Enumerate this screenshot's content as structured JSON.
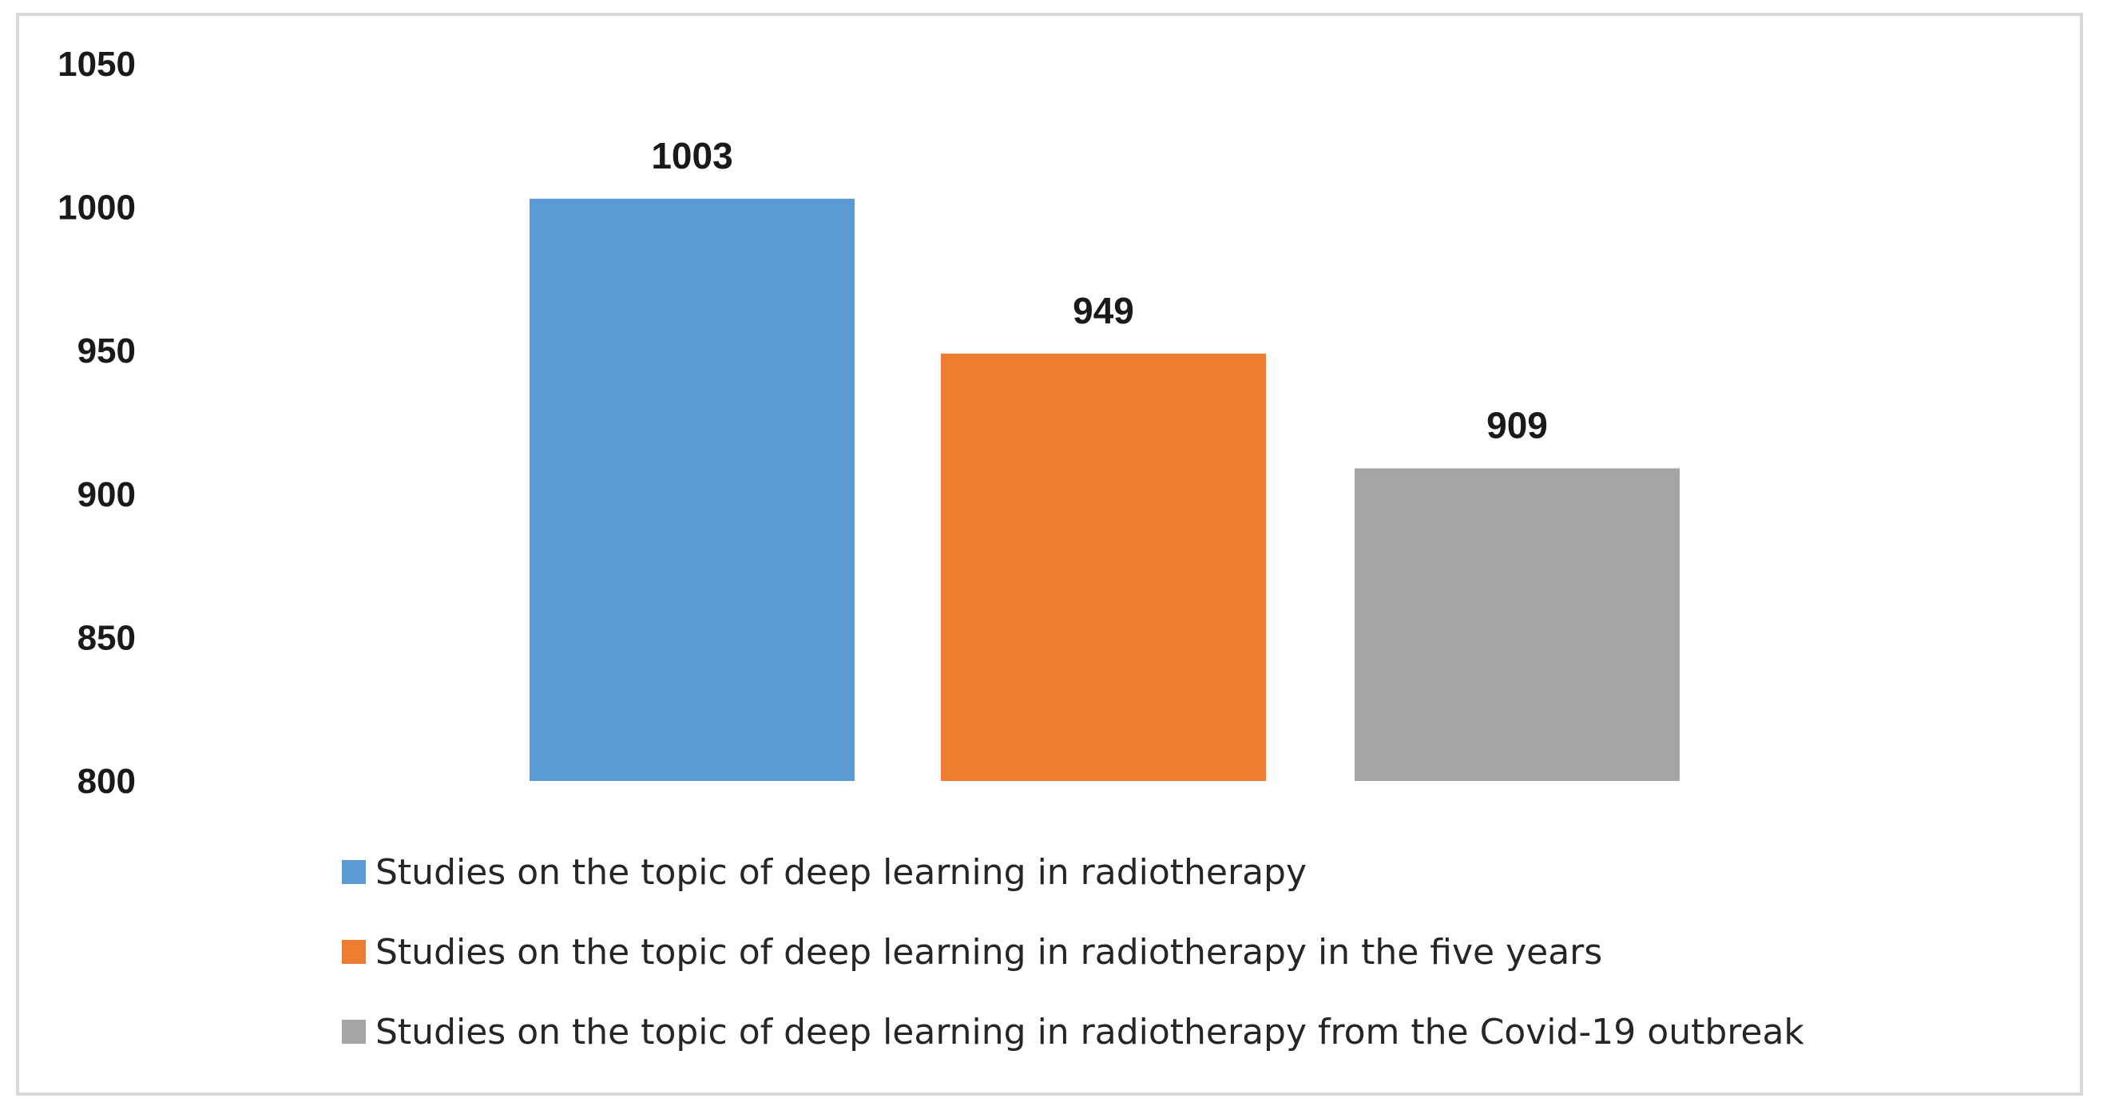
{
  "chart_data": {
    "type": "bar",
    "categories": [
      ""
    ],
    "series": [
      {
        "name": "Studies on the topic of deep learning in radiotherapy",
        "values": [
          1003
        ],
        "color": "#5B9BD5"
      },
      {
        "name": "Studies on the topic of deep learning in radiotherapy in the five years",
        "values": [
          949
        ],
        "color": "#ED7D31"
      },
      {
        "name": "Studies on the topic of deep learning in radiotherapy from the Covid-19 outbreak",
        "values": [
          909
        ],
        "color": "#A5A5A5"
      }
    ],
    "data_labels": [
      "1003",
      "949",
      "909"
    ],
    "ylim": [
      800,
      1050
    ],
    "yticks": [
      "800",
      "850",
      "900",
      "950",
      "1000",
      "1050"
    ],
    "title": "",
    "xlabel": "",
    "ylabel": "",
    "grid": false,
    "legend_position": "bottom"
  }
}
